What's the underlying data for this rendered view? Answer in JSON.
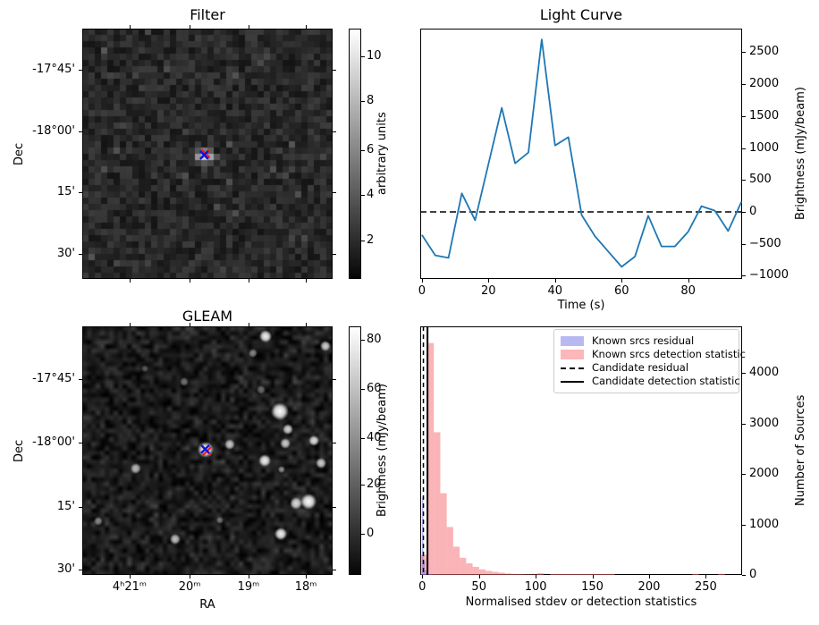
{
  "figure": {
    "background": "#ffffff"
  },
  "colors": {
    "line_blue": "#1f77b4",
    "marker_blue": "#1212d6",
    "marker_red": "#e82020",
    "hist_pink_fill": "rgba(246,112,117,0.52)",
    "hist_purple_fill": "rgba(116,116,228,0.5)",
    "legend_pink": "#fbb7ba",
    "legend_purple": "#b9b9f2",
    "black": "#000000"
  },
  "chart_data": [
    {
      "id": "filter_map",
      "type": "heatmap",
      "title": "Filter",
      "xlabel": "",
      "ylabel": "Dec",
      "ytick_labels": [
        "-17°45'",
        "-18°00'",
        "15'",
        "30'"
      ],
      "xtick_labels": [],
      "colorbar": {
        "label": "arbitrary units",
        "ticks": [
          "2",
          "4",
          "6",
          "8",
          "10"
        ],
        "vmin": 0.3,
        "vmax": 11.2
      },
      "description": "pixelated grayscale noise map, bright candidate source at centre marked with blue X over red X",
      "marker_frac": {
        "blue": [
          0.487,
          0.505
        ],
        "red": [
          0.493,
          0.499
        ]
      },
      "source_frac": [
        0.487,
        0.505
      ]
    },
    {
      "id": "light_curve",
      "type": "line",
      "title": "Light Curve",
      "xlabel": "Time (s)",
      "ylabel": "Brightness (mJy/beam)",
      "x": [
        0,
        4,
        8,
        12,
        16,
        20,
        24,
        28,
        32,
        36,
        40,
        44,
        48,
        52,
        56,
        60,
        64,
        68,
        72,
        76,
        80,
        84,
        88,
        92,
        96
      ],
      "y": [
        -360,
        -680,
        -720,
        290,
        -130,
        750,
        1630,
        760,
        930,
        2700,
        1040,
        1170,
        -50,
        -380,
        -620,
        -860,
        -700,
        -60,
        -540,
        -540,
        -310,
        90,
        20,
        -300,
        160
      ],
      "xticks": [
        0,
        20,
        40,
        60,
        80
      ],
      "yticks": [
        -1000,
        -500,
        0,
        500,
        1000,
        1500,
        2000,
        2500
      ],
      "xlim": [
        -0.5,
        96.2
      ],
      "ylim": [
        -1050,
        2870
      ],
      "hline_y": 0,
      "hline_style": "dashed black",
      "legend_position": "none",
      "grid": false
    },
    {
      "id": "gleam_map",
      "type": "heatmap",
      "title": "GLEAM",
      "xlabel": "RA",
      "ylabel": "Dec",
      "xtick_labels": [
        "4ʰ21ᵐ",
        "20ᵐ",
        "19ᵐ",
        "18ᵐ"
      ],
      "ytick_labels": [
        "-17°45'",
        "-18°00'",
        "15'",
        "30'"
      ],
      "colorbar": {
        "label": "Brightness (mJy/beam)",
        "ticks": [
          "0",
          "20",
          "40",
          "60",
          "80"
        ],
        "vmin": -17,
        "vmax": 85
      },
      "description": "smooth grayscale sky image with bright point sources; candidate position marked with blue X over red X on a bright source",
      "marker_frac": {
        "blue": [
          0.491,
          0.494
        ],
        "red": [
          0.498,
          0.502
        ]
      },
      "blobs": [
        [
          0.732,
          0.04,
          7,
          0.95
        ],
        [
          0.971,
          0.079,
          6,
          0.8
        ],
        [
          0.682,
          0.108,
          5,
          0.5
        ],
        [
          0.789,
          0.342,
          10,
          1.0
        ],
        [
          0.821,
          0.414,
          6,
          0.85
        ],
        [
          0.811,
          0.471,
          6,
          0.8
        ],
        [
          0.925,
          0.46,
          6,
          0.9
        ],
        [
          0.954,
          0.55,
          6,
          0.8
        ],
        [
          0.729,
          0.54,
          7,
          0.95
        ],
        [
          0.589,
          0.475,
          6,
          0.8
        ],
        [
          0.493,
          0.496,
          9,
          1.0
        ],
        [
          0.214,
          0.572,
          6,
          0.7
        ],
        [
          0.796,
          0.576,
          4,
          0.55
        ],
        [
          0.904,
          0.705,
          9,
          1.0
        ],
        [
          0.854,
          0.712,
          7,
          0.85
        ],
        [
          0.793,
          0.835,
          7,
          0.95
        ],
        [
          0.371,
          0.856,
          6,
          0.75
        ],
        [
          0.064,
          0.784,
          5,
          0.5
        ],
        [
          0.407,
          0.223,
          5,
          0.45
        ],
        [
          0.714,
          0.255,
          5,
          0.4
        ],
        [
          0.25,
          0.17,
          4,
          0.3
        ],
        [
          0.55,
          0.78,
          4,
          0.35
        ]
      ]
    },
    {
      "id": "histogram",
      "type": "histogram",
      "title": "",
      "xlabel": "Normalised stdev or detection statistics",
      "ylabel": "Number of Sources",
      "xticks": [
        0,
        50,
        100,
        150,
        200,
        250
      ],
      "yticks": [
        0,
        1000,
        2000,
        3000,
        4000
      ],
      "xlim": [
        -1.8,
        282
      ],
      "ylim": [
        0,
        4930
      ],
      "series": [
        {
          "name": "Known srcs residual",
          "bin_start": -0.3,
          "bin_width": 1.3,
          "counts": [
            1550,
            260,
            90,
            40,
            22,
            12,
            8,
            5,
            3,
            2
          ]
        },
        {
          "name": "Known srcs detection statistic",
          "bin_start": -1.2,
          "bin_width": 5.7,
          "counts": [
            400,
            4600,
            2830,
            1620,
            950,
            560,
            340,
            230,
            160,
            110,
            80,
            60,
            45,
            30,
            22,
            16,
            12,
            10,
            35,
            0,
            20,
            20,
            20,
            20,
            20,
            20,
            20,
            20,
            20,
            20,
            0,
            0,
            0,
            0,
            0,
            0,
            0,
            0,
            0,
            0,
            0,
            0,
            20,
            0,
            0,
            0,
            22,
            0
          ]
        }
      ],
      "vlines": [
        {
          "name": "Candidate residual",
          "x": 1.0,
          "style": "dashed"
        },
        {
          "name": "Candidate detection statistic",
          "x": 4.6,
          "style": "solid"
        }
      ],
      "legend_items": [
        {
          "label": "Known srcs residual",
          "swatch": "patch-purple"
        },
        {
          "label": "Known srcs detection statistic",
          "swatch": "patch-pink"
        },
        {
          "label": "Candidate residual",
          "swatch": "dashed-line"
        },
        {
          "label": "Candidate detection statistic",
          "swatch": "solid-line"
        }
      ],
      "legend_position": "upper right"
    }
  ]
}
